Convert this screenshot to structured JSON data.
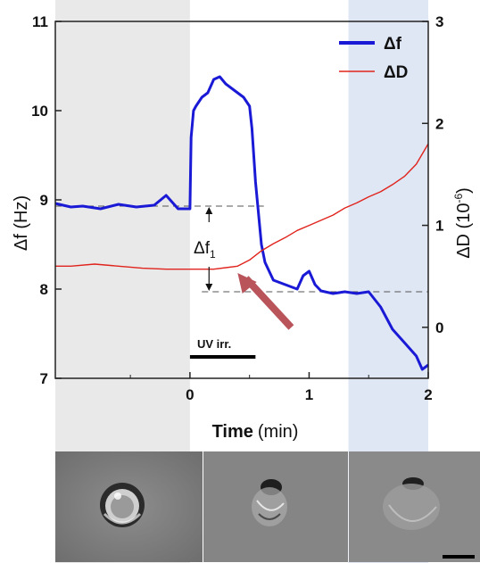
{
  "chart_data": {
    "type": "line",
    "title": "",
    "xlabel_bold": "Time",
    "xlabel_unit": "(min)",
    "ylabel_left": "Δf (Hz)",
    "ylabel_right_main": "ΔD (10",
    "ylabel_right_exp": "-6",
    "ylabel_right_close": ")",
    "xlim": [
      -1.13,
      2.0
    ],
    "ylim_left": [
      7,
      11
    ],
    "ylim_right": [
      -0.5,
      3
    ],
    "x_ticks": [
      0,
      1,
      2
    ],
    "y_ticks_left": [
      7,
      8,
      9,
      10,
      11
    ],
    "y_ticks_right": [
      0,
      1,
      2,
      3
    ],
    "legend": {
      "position": "top-right",
      "entries": [
        "Δf",
        "ΔD"
      ]
    },
    "colors": {
      "df": "#1a1ad6",
      "dD": "#e0231c",
      "shade_gray": "#e9e9e9",
      "shade_blue": "#dfe7f4",
      "arrow": "#b8545a"
    },
    "annotations": {
      "delta_label": "Δf",
      "delta_sub": "1",
      "uv_label": "UV irr.",
      "uv_start": 0.0,
      "uv_end": 0.55,
      "upper_ref": 8.93,
      "lower_ref": 7.97
    },
    "shaded_regions": [
      {
        "from": -1.13,
        "to": 0.0,
        "color": "gray"
      },
      {
        "from": 1.33,
        "to": 2.0,
        "color": "blue"
      }
    ],
    "series": [
      {
        "name": "Δf",
        "axis": "left",
        "color": "#1a1ad6",
        "x": [
          -1.13,
          -1.0,
          -0.9,
          -0.75,
          -0.6,
          -0.45,
          -0.3,
          -0.2,
          -0.1,
          0.0,
          0.01,
          0.03,
          0.05,
          0.1,
          0.15,
          0.2,
          0.25,
          0.3,
          0.35,
          0.4,
          0.45,
          0.5,
          0.52,
          0.55,
          0.6,
          0.63,
          0.7,
          0.8,
          0.9,
          0.95,
          1.0,
          1.05,
          1.1,
          1.2,
          1.3,
          1.4,
          1.5,
          1.6,
          1.7,
          1.8,
          1.9,
          1.95,
          2.0
        ],
        "values": [
          8.96,
          8.92,
          8.93,
          8.9,
          8.95,
          8.92,
          8.94,
          9.05,
          8.9,
          8.9,
          9.7,
          10.0,
          10.05,
          10.15,
          10.2,
          10.35,
          10.38,
          10.3,
          10.25,
          10.2,
          10.15,
          10.05,
          9.8,
          9.2,
          8.5,
          8.3,
          8.1,
          8.05,
          8.0,
          8.15,
          8.2,
          8.05,
          7.98,
          7.95,
          7.97,
          7.95,
          7.97,
          7.8,
          7.55,
          7.4,
          7.25,
          7.1,
          7.15
        ]
      },
      {
        "name": "ΔD",
        "axis": "right",
        "color": "#e0231c",
        "x": [
          -1.13,
          -1.0,
          -0.8,
          -0.6,
          -0.4,
          -0.2,
          0.0,
          0.2,
          0.4,
          0.5,
          0.6,
          0.7,
          0.8,
          0.9,
          1.0,
          1.1,
          1.2,
          1.3,
          1.4,
          1.5,
          1.6,
          1.7,
          1.8,
          1.9,
          2.0
        ],
        "values": [
          0.6,
          0.6,
          0.62,
          0.6,
          0.58,
          0.57,
          0.57,
          0.57,
          0.6,
          0.66,
          0.75,
          0.82,
          0.88,
          0.95,
          1.0,
          1.05,
          1.1,
          1.17,
          1.22,
          1.28,
          1.33,
          1.4,
          1.48,
          1.6,
          1.8
        ]
      }
    ]
  }
}
